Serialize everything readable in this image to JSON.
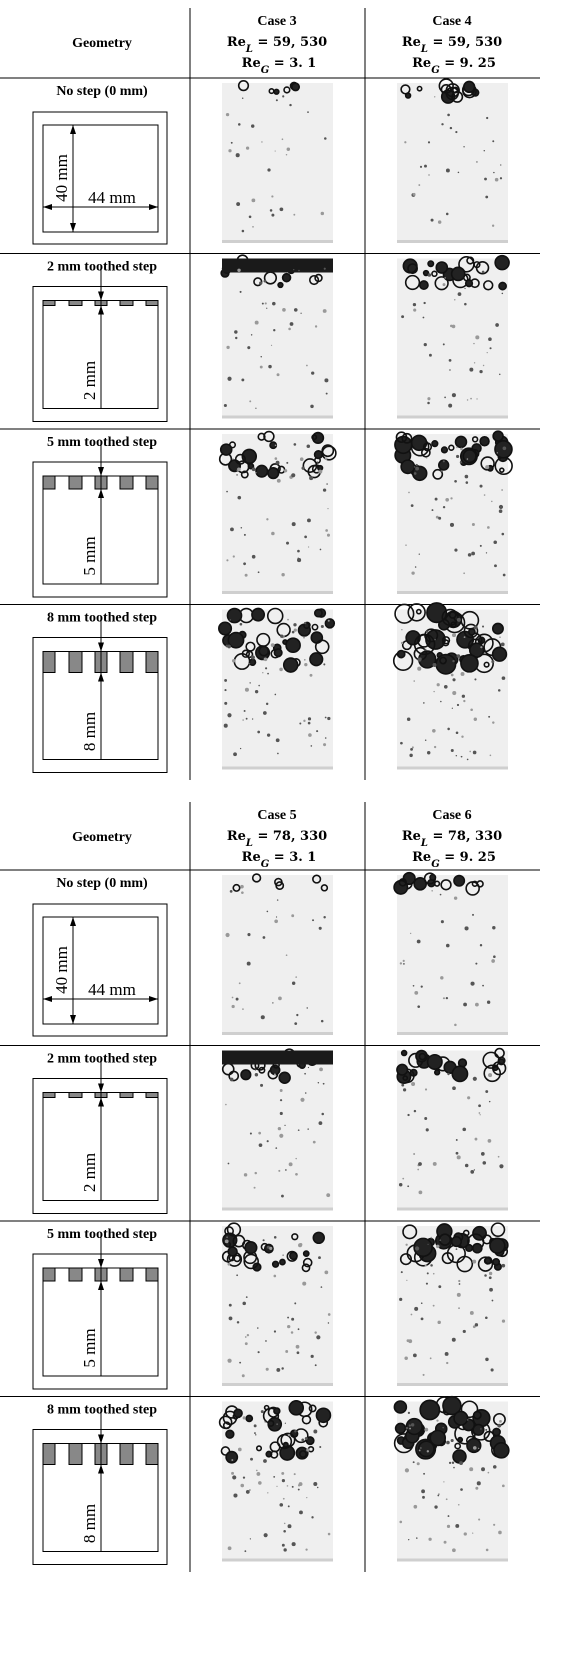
{
  "tables": [
    {
      "header": {
        "geometry": "Geometry",
        "cases": [
          {
            "title": "Case 3",
            "re_l": {
              "symbol": "Re",
              "subscript": "L",
              "value": " = 59, 530"
            },
            "re_g": {
              "symbol": "Re",
              "subscript": "G",
              "value": " = 3. 1"
            }
          },
          {
            "title": "Case 4",
            "re_l": {
              "symbol": "Re",
              "subscript": "L",
              "value": " = 59, 530"
            },
            "re_g": {
              "symbol": "Re",
              "subscript": "G",
              "value": " = 9. 25"
            }
          }
        ]
      },
      "rows": [
        {
          "label": "No step (0 mm)",
          "dims": [
            "40 mm",
            "44 mm"
          ]
        },
        {
          "label": "2 mm toothed step",
          "dims": [
            "2 mm"
          ]
        },
        {
          "label": "5 mm toothed step",
          "dims": [
            "5 mm"
          ]
        },
        {
          "label": "8 mm toothed step",
          "dims": [
            "8 mm"
          ]
        }
      ]
    },
    {
      "header": {
        "geometry": "Geometry",
        "cases": [
          {
            "title": "Case 5",
            "re_l": {
              "symbol": "Re",
              "subscript": "L",
              "value": " = 78, 330"
            },
            "re_g": {
              "symbol": "Re",
              "subscript": "G",
              "value": " = 3. 1"
            }
          },
          {
            "title": "Case 6",
            "re_l": {
              "symbol": "Re",
              "subscript": "L",
              "value": " = 78, 330"
            },
            "re_g": {
              "symbol": "Re",
              "subscript": "G",
              "value": " = 9. 25"
            }
          }
        ]
      },
      "rows": [
        {
          "label": "No step (0 mm)",
          "dims": [
            "40 mm",
            "44 mm"
          ]
        },
        {
          "label": "2 mm toothed step",
          "dims": [
            "2 mm"
          ]
        },
        {
          "label": "5 mm toothed step",
          "dims": [
            "5 mm"
          ]
        },
        {
          "label": "8 mm toothed step",
          "dims": [
            "8 mm"
          ]
        }
      ]
    }
  ]
}
